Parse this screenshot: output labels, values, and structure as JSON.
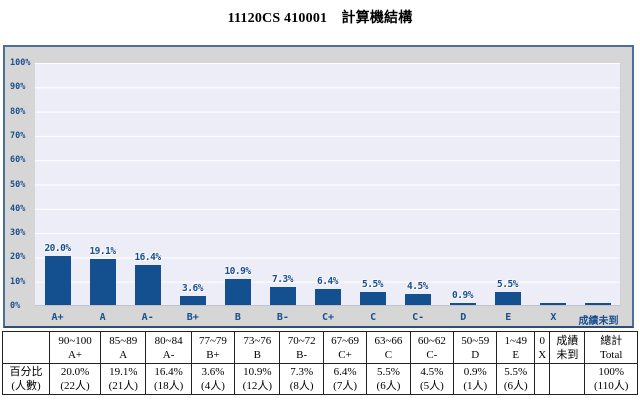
{
  "title": "11120CS 410001　計算機結構",
  "chart_data": {
    "type": "bar",
    "title": "11120CS 410001　計算機結構",
    "categories": [
      "A+",
      "A",
      "A-",
      "B+",
      "B",
      "B-",
      "C+",
      "C",
      "C-",
      "D",
      "E",
      "X",
      "成績未到"
    ],
    "values": [
      20.0,
      19.1,
      16.4,
      3.6,
      10.9,
      7.3,
      6.4,
      5.5,
      4.5,
      0.9,
      5.5,
      0,
      0
    ],
    "bar_labels": [
      "20.0%",
      "19.1%",
      "16.4%",
      "3.6%",
      "10.9%",
      "7.3%",
      "6.4%",
      "5.5%",
      "4.5%",
      "0.9%",
      "5.5%",
      "",
      ""
    ],
    "counts": [
      22,
      21,
      18,
      4,
      12,
      8,
      7,
      6,
      5,
      1,
      6,
      0,
      0
    ],
    "xlabel": "",
    "ylabel": "",
    "ylim": [
      0,
      100
    ],
    "y_ticks": [
      "100%",
      "90%",
      "80%",
      "70%",
      "60%",
      "50%",
      "40%",
      "30%",
      "20%",
      "10%",
      "0%"
    ],
    "grid": true,
    "legend": false,
    "bar_color": "#14508f"
  },
  "colors": {
    "bar": "#14508f",
    "axis_label": "#1a4f8e",
    "plot_background": "#ededf8",
    "chart_background": "#d6d6d6",
    "chart_border": "#4a6f9c"
  },
  "table": {
    "row_label_line1": "百分比",
    "row_label_line2": "(人數)",
    "columns": [
      {
        "h1": "90~100",
        "h2": "A+",
        "v1": "20.0%",
        "v2": "(22人)"
      },
      {
        "h1": "85~89",
        "h2": "A",
        "v1": "19.1%",
        "v2": "(21人)"
      },
      {
        "h1": "80~84",
        "h2": "A-",
        "v1": "16.4%",
        "v2": "(18人)"
      },
      {
        "h1": "77~79",
        "h2": "B+",
        "v1": "3.6%",
        "v2": "(4人)"
      },
      {
        "h1": "73~76",
        "h2": "B",
        "v1": "10.9%",
        "v2": "(12人)"
      },
      {
        "h1": "70~72",
        "h2": "B-",
        "v1": "7.3%",
        "v2": "(8人)"
      },
      {
        "h1": "67~69",
        "h2": "C+",
        "v1": "6.4%",
        "v2": "(7人)"
      },
      {
        "h1": "63~66",
        "h2": "C",
        "v1": "5.5%",
        "v2": "(6人)"
      },
      {
        "h1": "60~62",
        "h2": "C-",
        "v1": "4.5%",
        "v2": "(5人)"
      },
      {
        "h1": "50~59",
        "h2": "D",
        "v1": "0.9%",
        "v2": "(1人)"
      },
      {
        "h1": "1~49",
        "h2": "E",
        "v1": "5.5%",
        "v2": "(6人)"
      },
      {
        "h1": "0",
        "h2": "X",
        "v1": "",
        "v2": ""
      },
      {
        "h1": "成績",
        "h2": "未到",
        "v1": "",
        "v2": ""
      },
      {
        "h1": "總計",
        "h2": "Total",
        "v1": "100%",
        "v2": "(110人)"
      }
    ]
  }
}
